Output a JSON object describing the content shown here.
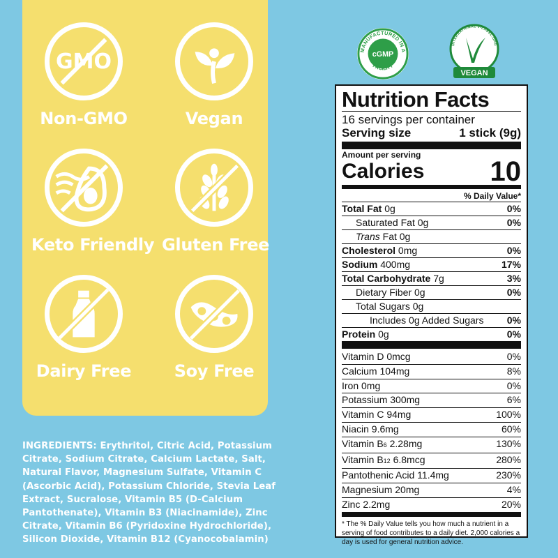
{
  "badges": [
    {
      "label": "Non-GMO",
      "icon": "no-gmo-icon",
      "icon_text": "GMO"
    },
    {
      "label": "Vegan",
      "icon": "vegan-plant-icon"
    },
    {
      "label": "Keto Friendly",
      "icon": "avocado-icon"
    },
    {
      "label": "Gluten Free",
      "icon": "wheat-icon"
    },
    {
      "label": "Dairy Free",
      "icon": "milk-bottle-icon"
    },
    {
      "label": "Soy Free",
      "icon": "soybean-icon"
    }
  ],
  "certifications": {
    "gmp": {
      "top_text": "MANUFACTURED IN A",
      "center_text": "cGMP",
      "bottom_text": "FACILITY"
    },
    "vegan": {
      "ring_text": "INTERNATIONAL V-LABEL.ORG",
      "ribbon_text": "VEGAN"
    }
  },
  "colors": {
    "background": "#7ec8e3",
    "panel": "#f5df6e",
    "gmp_green": "#2e9e48",
    "vegan_green": "#1f8a3a"
  },
  "nutrition": {
    "title": "Nutrition Facts",
    "servings": "16 servings per container",
    "serving_size_label": "Serving size",
    "serving_size_value": "1 stick (9g)",
    "amount_per_serving": "Amount per serving",
    "calories_label": "Calories",
    "calories_value": "10",
    "dv_header": "% Daily Value*",
    "total_fat": {
      "label": "Total Fat",
      "amount": "0g",
      "dv": "0%"
    },
    "saturated_fat": {
      "label": "Saturated Fat 0g",
      "dv": "0%"
    },
    "trans_fat": {
      "label_italic": "Trans",
      "label": " Fat 0g"
    },
    "cholesterol": {
      "label": "Cholesterol",
      "amount": "0mg",
      "dv": "0%"
    },
    "sodium": {
      "label": "Sodium",
      "amount": "400mg",
      "dv": "17%"
    },
    "total_carb": {
      "label": "Total Carbohydrate",
      "amount": "7g",
      "dv": "3%"
    },
    "fiber": {
      "label": "Dietary Fiber 0g",
      "dv": "0%"
    },
    "sugars": {
      "label": "Total Sugars 0g"
    },
    "added_sugars": {
      "label": "Includes 0g Added Sugars",
      "dv": "0%"
    },
    "protein": {
      "label": "Protein",
      "amount": "0g",
      "dv": "0%"
    },
    "vitamins": [
      {
        "name": "Vitamin D 0mcg",
        "dv": "0%"
      },
      {
        "name": "Calcium 104mg",
        "dv": "8%"
      },
      {
        "name": "Iron 0mg",
        "dv": "0%"
      },
      {
        "name": "Potassium 300mg",
        "dv": "6%"
      },
      {
        "name": "Vitamin C 94mg",
        "dv": "100%"
      },
      {
        "name": "Niacin 9.6mg",
        "dv": "60%"
      },
      {
        "name": "Vitamin B",
        "sub": "6",
        "rest": " 2.28mg",
        "dv": "130%"
      },
      {
        "name": "Vitamin B",
        "sub": "12",
        "rest": " 6.8mcg",
        "dv": "280%"
      },
      {
        "name": "Pantothenic Acid 11.4mg",
        "dv": "230%"
      },
      {
        "name": "Magnesium 20mg",
        "dv": "4%"
      },
      {
        "name": "Zinc 2.2mg",
        "dv": "20%"
      }
    ],
    "footnote": "* The % Daily Value tells you how much a nutrient in a serving of food contributes to a daily diet. 2,000 calories a day is used for general nutrition advice."
  },
  "ingredients": {
    "heading": "INGREDIENTS:",
    "text": " Erythritol, Citric Acid, Potassium Citrate, Sodium Citrate, Calcium Lactate, Salt, Natural Flavor, Magnesium Sulfate, Vitamin C (Ascorbic Acid), Potassium Chloride, Stevia Leaf Extract, Sucralose, Vitamin B5 (D-Calcium Pantothenate), Vitamin B3 (Niacinamide), Zinc Citrate, Vitamin B6 (Pyridoxine Hydrochloride), Silicon Dioxide, Vitamin B12 (Cyanocobalamin)"
  }
}
